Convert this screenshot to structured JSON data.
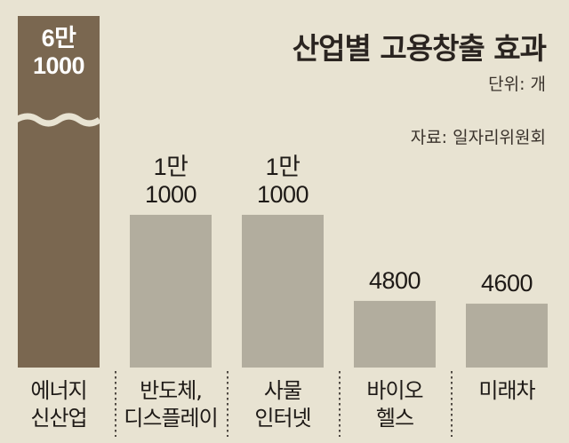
{
  "header": {
    "title": "산업별 고용창출 효과",
    "unit": "단위: 개",
    "source": "자료: 일자리위원회"
  },
  "colors": {
    "background": "#e8e3d2",
    "highlight_bar": "#7a6750",
    "bar": "#b2ad9e"
  },
  "chart_data": {
    "type": "bar",
    "title": "산업별 고용창출 효과",
    "unit": "개",
    "axis_break": true,
    "categories": [
      [
        "에너지",
        "신산업"
      ],
      [
        "반도체,",
        "디스플레이"
      ],
      [
        "사물",
        "인터넷"
      ],
      [
        "바이오",
        "헬스"
      ],
      [
        "미래차"
      ]
    ],
    "values": [
      61000,
      11000,
      11000,
      4800,
      4600
    ],
    "value_labels": [
      [
        "6만",
        "1000"
      ],
      [
        "1만",
        "1000"
      ],
      [
        "1만",
        "1000"
      ],
      [
        "4800"
      ],
      [
        "4600"
      ]
    ]
  }
}
